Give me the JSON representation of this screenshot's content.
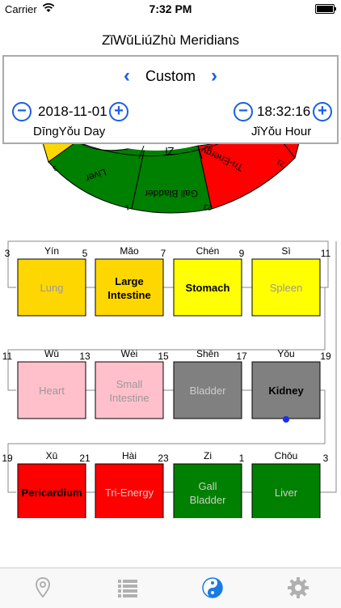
{
  "status": {
    "carrier": "Carrier",
    "time": "7:32 PM"
  },
  "nav": {
    "title": "ZǐWǔLiúZhù Meridians"
  },
  "panel": {
    "mode": "Custom",
    "date": "2018-11-01",
    "date_sub": "DīngYǒu Day",
    "time": "18:32:16",
    "time_sub": "JǐYǒu Hour"
  },
  "wheel": {
    "labels": [
      "Liver",
      "Gall Bladder",
      "Tri-Energy"
    ],
    "inner_label": "Zǐ",
    "numbers": [
      "3",
      "1",
      "23",
      "21"
    ]
  },
  "cycle": {
    "colors": {
      "yellow": "#FFFF00",
      "gold": "#FFD700",
      "pink": "#FFC0CB",
      "gray": "#808080",
      "red": "#FF0000",
      "green": "#008000"
    },
    "rows": [
      [
        {
          "branch": "Yín",
          "name": "Lung",
          "start": "3",
          "color": "#FFD700",
          "bold": false,
          "dim": true
        },
        {
          "branch": "Mǎo",
          "name": "Large Intestine",
          "start": "5",
          "color": "#FFD700",
          "bold": true,
          "dim": false
        },
        {
          "branch": "Chén",
          "name": "Stomach",
          "start": "7",
          "color": "#FFFF00",
          "bold": true,
          "dim": false
        },
        {
          "branch": "Sì",
          "name": "Spleen",
          "start": "9",
          "color": "#FFFF00",
          "bold": false,
          "dim": true
        }
      ],
      [
        {
          "branch": "Wǔ",
          "name": "Heart",
          "start": "11",
          "color": "#FFC0CB",
          "bold": false,
          "dim": true
        },
        {
          "branch": "Wèi",
          "name": "Small Intestine",
          "start": "13",
          "color": "#FFC0CB",
          "bold": false,
          "dim": true
        },
        {
          "branch": "Shēn",
          "name": "Bladder",
          "start": "15",
          "color": "#808080",
          "bold": false,
          "dim": true
        },
        {
          "branch": "Yǒu",
          "name": "Kidney",
          "start": "17",
          "color": "#808080",
          "bold": true,
          "dim": false,
          "current": true
        }
      ],
      [
        {
          "branch": "Xū",
          "name": "Pericardium",
          "start": "19",
          "color": "#FF0000",
          "bold": true,
          "dim": false
        },
        {
          "branch": "Hài",
          "name": "Tri-Energy",
          "start": "21",
          "color": "#FF0000",
          "bold": false,
          "dim": true
        },
        {
          "branch": "Zi",
          "name": "Gall Bladder",
          "start": "23",
          "color": "#008000",
          "bold": false,
          "dim": true
        },
        {
          "branch": "Chǒu",
          "name": "Liver",
          "start": "1",
          "color": "#008000",
          "bold": false,
          "dim": true
        }
      ]
    ],
    "row_end_numbers": [
      "11",
      "19",
      "3"
    ]
  },
  "tabs": [
    {
      "icon": "location-pin-icon",
      "active": false
    },
    {
      "icon": "list-icon",
      "active": false
    },
    {
      "icon": "yin-yang-icon",
      "active": true
    },
    {
      "icon": "gear-icon",
      "active": false
    }
  ]
}
